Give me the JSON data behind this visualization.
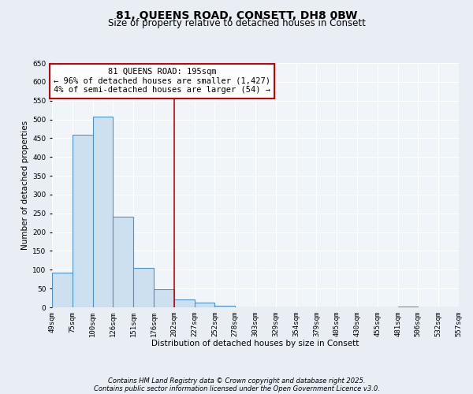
{
  "title": "81, QUEENS ROAD, CONSETT, DH8 0BW",
  "subtitle": "Size of property relative to detached houses in Consett",
  "bar_values": [
    92,
    460,
    507,
    242,
    104,
    48,
    20,
    13,
    5,
    0,
    0,
    0,
    0,
    0,
    0,
    0,
    0,
    2,
    0,
    1
  ],
  "bin_labels": [
    "49sqm",
    "75sqm",
    "100sqm",
    "126sqm",
    "151sqm",
    "176sqm",
    "202sqm",
    "227sqm",
    "252sqm",
    "278sqm",
    "303sqm",
    "329sqm",
    "354sqm",
    "379sqm",
    "405sqm",
    "430sqm",
    "455sqm",
    "481sqm",
    "506sqm",
    "532sqm",
    "557sqm"
  ],
  "bar_color": "#cce0f0",
  "bar_edge_color": "#4d94cc",
  "bar_edge_width": 0.8,
  "xlabel": "Distribution of detached houses by size in Consett",
  "ylabel": "Number of detached properties",
  "ylim": [
    0,
    650
  ],
  "yticks": [
    0,
    50,
    100,
    150,
    200,
    250,
    300,
    350,
    400,
    450,
    500,
    550,
    600,
    650
  ],
  "vline_x": 6,
  "vline_color": "#cc0000",
  "annotation_title": "81 QUEENS ROAD: 195sqm",
  "annotation_line1": "← 96% of detached houses are smaller (1,427)",
  "annotation_line2": "4% of semi-detached houses are larger (54) →",
  "annotation_box_color": "#ffffff",
  "annotation_box_edge": "#cc0000",
  "footnote1": "Contains HM Land Registry data © Crown copyright and database right 2025.",
  "footnote2": "Contains public sector information licensed under the Open Government Licence v3.0.",
  "bg_color": "#e8eef4",
  "plot_bg_color": "#f0f5fa",
  "grid_color": "#ffffff",
  "title_fontsize": 10,
  "subtitle_fontsize": 8.5,
  "label_fontsize": 7.5,
  "tick_fontsize": 6.5,
  "annotation_fontsize": 7.5,
  "footnote_fontsize": 6.0
}
